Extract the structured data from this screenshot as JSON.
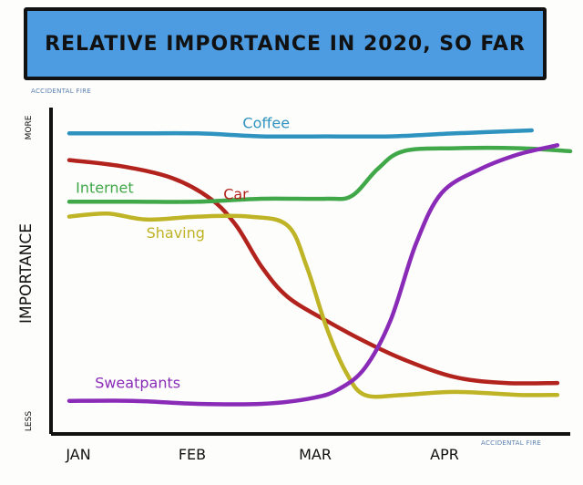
{
  "chart_data": {
    "type": "line",
    "title": "RELATIVE IMPORTANCE IN 2020, SO FAR",
    "ylabel": "IMPORTANCE",
    "y_top_label": "MORE",
    "y_bottom_label": "LESS",
    "categories": [
      "JAN",
      "FEB",
      "MAR",
      "APR"
    ],
    "xlim": [
      0,
      3.9
    ],
    "ylim": [
      0,
      100
    ],
    "watermark": "ACCIDENTAL FIRE",
    "series": [
      {
        "name": "Coffee",
        "color": "#2f93bf",
        "points": [
          [
            0,
            95
          ],
          [
            0.5,
            95
          ],
          [
            1,
            95
          ],
          [
            1.5,
            94
          ],
          [
            2,
            94
          ],
          [
            2.5,
            94
          ],
          [
            3,
            95
          ],
          [
            3.6,
            96
          ]
        ]
      },
      {
        "name": "Car",
        "color": "#b3231e",
        "points": [
          [
            0,
            86
          ],
          [
            0.4,
            84
          ],
          [
            0.8,
            80
          ],
          [
            1.1,
            73
          ],
          [
            1.3,
            64
          ],
          [
            1.5,
            50
          ],
          [
            1.7,
            40
          ],
          [
            2,
            32
          ],
          [
            2.3,
            25
          ],
          [
            2.6,
            19
          ],
          [
            3,
            13
          ],
          [
            3.4,
            11
          ],
          [
            3.8,
            11
          ]
        ]
      },
      {
        "name": "Internet",
        "color": "#41a84a",
        "points": [
          [
            0,
            72
          ],
          [
            0.5,
            72
          ],
          [
            1,
            72
          ],
          [
            1.5,
            73
          ],
          [
            2,
            73
          ],
          [
            2.2,
            74
          ],
          [
            2.4,
            83
          ],
          [
            2.6,
            89
          ],
          [
            3,
            90
          ],
          [
            3.5,
            90
          ],
          [
            3.9,
            89
          ]
        ]
      },
      {
        "name": "Shaving",
        "color": "#bfb326",
        "points": [
          [
            0,
            67
          ],
          [
            0.3,
            68
          ],
          [
            0.6,
            66
          ],
          [
            1,
            67
          ],
          [
            1.4,
            67
          ],
          [
            1.7,
            64
          ],
          [
            1.85,
            50
          ],
          [
            2,
            30
          ],
          [
            2.15,
            15
          ],
          [
            2.3,
            7
          ],
          [
            2.6,
            7
          ],
          [
            3,
            8
          ],
          [
            3.5,
            7
          ],
          [
            3.8,
            7
          ]
        ]
      },
      {
        "name": "Sweatpants",
        "color": "#8a2bb8",
        "points": [
          [
            0,
            5
          ],
          [
            0.5,
            5
          ],
          [
            1,
            4
          ],
          [
            1.5,
            4
          ],
          [
            1.9,
            6
          ],
          [
            2.1,
            9
          ],
          [
            2.3,
            16
          ],
          [
            2.5,
            32
          ],
          [
            2.7,
            58
          ],
          [
            2.9,
            75
          ],
          [
            3.2,
            83
          ],
          [
            3.5,
            88
          ],
          [
            3.8,
            91
          ]
        ]
      }
    ]
  }
}
